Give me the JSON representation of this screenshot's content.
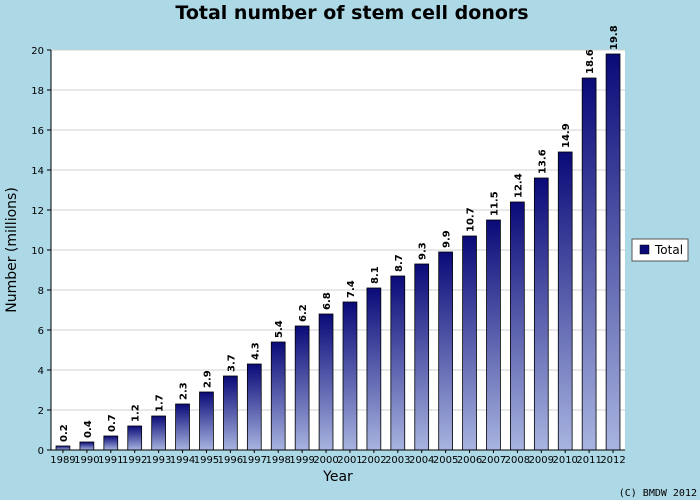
{
  "chart_data": {
    "type": "bar",
    "title": "Total number of stem cell donors",
    "xlabel": "Year",
    "ylabel": "Number (millions)",
    "ylim": [
      0,
      20
    ],
    "yticks": [
      0,
      2,
      4,
      6,
      8,
      10,
      12,
      14,
      16,
      18,
      20
    ],
    "grid": true,
    "legend_position": "right",
    "categories": [
      "1989",
      "1990",
      "1991",
      "1992",
      "1993",
      "1994",
      "1995",
      "1996",
      "1997",
      "1998",
      "1999",
      "2000",
      "2001",
      "2002",
      "2003",
      "2004",
      "2005",
      "2006",
      "2007",
      "2008",
      "2009",
      "2010",
      "2011",
      "2012"
    ],
    "series": [
      {
        "name": "Total",
        "values": [
          0.2,
          0.4,
          0.7,
          1.2,
          1.7,
          2.3,
          2.9,
          3.7,
          4.3,
          5.4,
          6.2,
          6.8,
          7.4,
          8.1,
          8.7,
          9.3,
          9.9,
          10.7,
          11.5,
          12.4,
          13.6,
          14.9,
          18.6,
          19.8
        ],
        "data_labels": [
          "0.2",
          "0.4",
          "0.7",
          "1.2",
          "1.7",
          "2.3",
          "2.9",
          "3.7",
          "4.3",
          "5.4",
          "6.2",
          "6.8",
          "7.4",
          "8.1",
          "8.7",
          "9.3",
          "9.9",
          "10.7",
          "11.5",
          "12.4",
          "13.6",
          "14.9",
          "18.6",
          "19.8"
        ]
      }
    ],
    "copyright": "(C) BMDW 2012"
  },
  "colors": {
    "background": "#add8e6",
    "plot_background": "#ffffff",
    "bar_top": "#0a0a78",
    "bar_bottom": "#a8b4e0",
    "legend_swatch": "#0a0a78",
    "gridline": "#d0d0d0"
  }
}
